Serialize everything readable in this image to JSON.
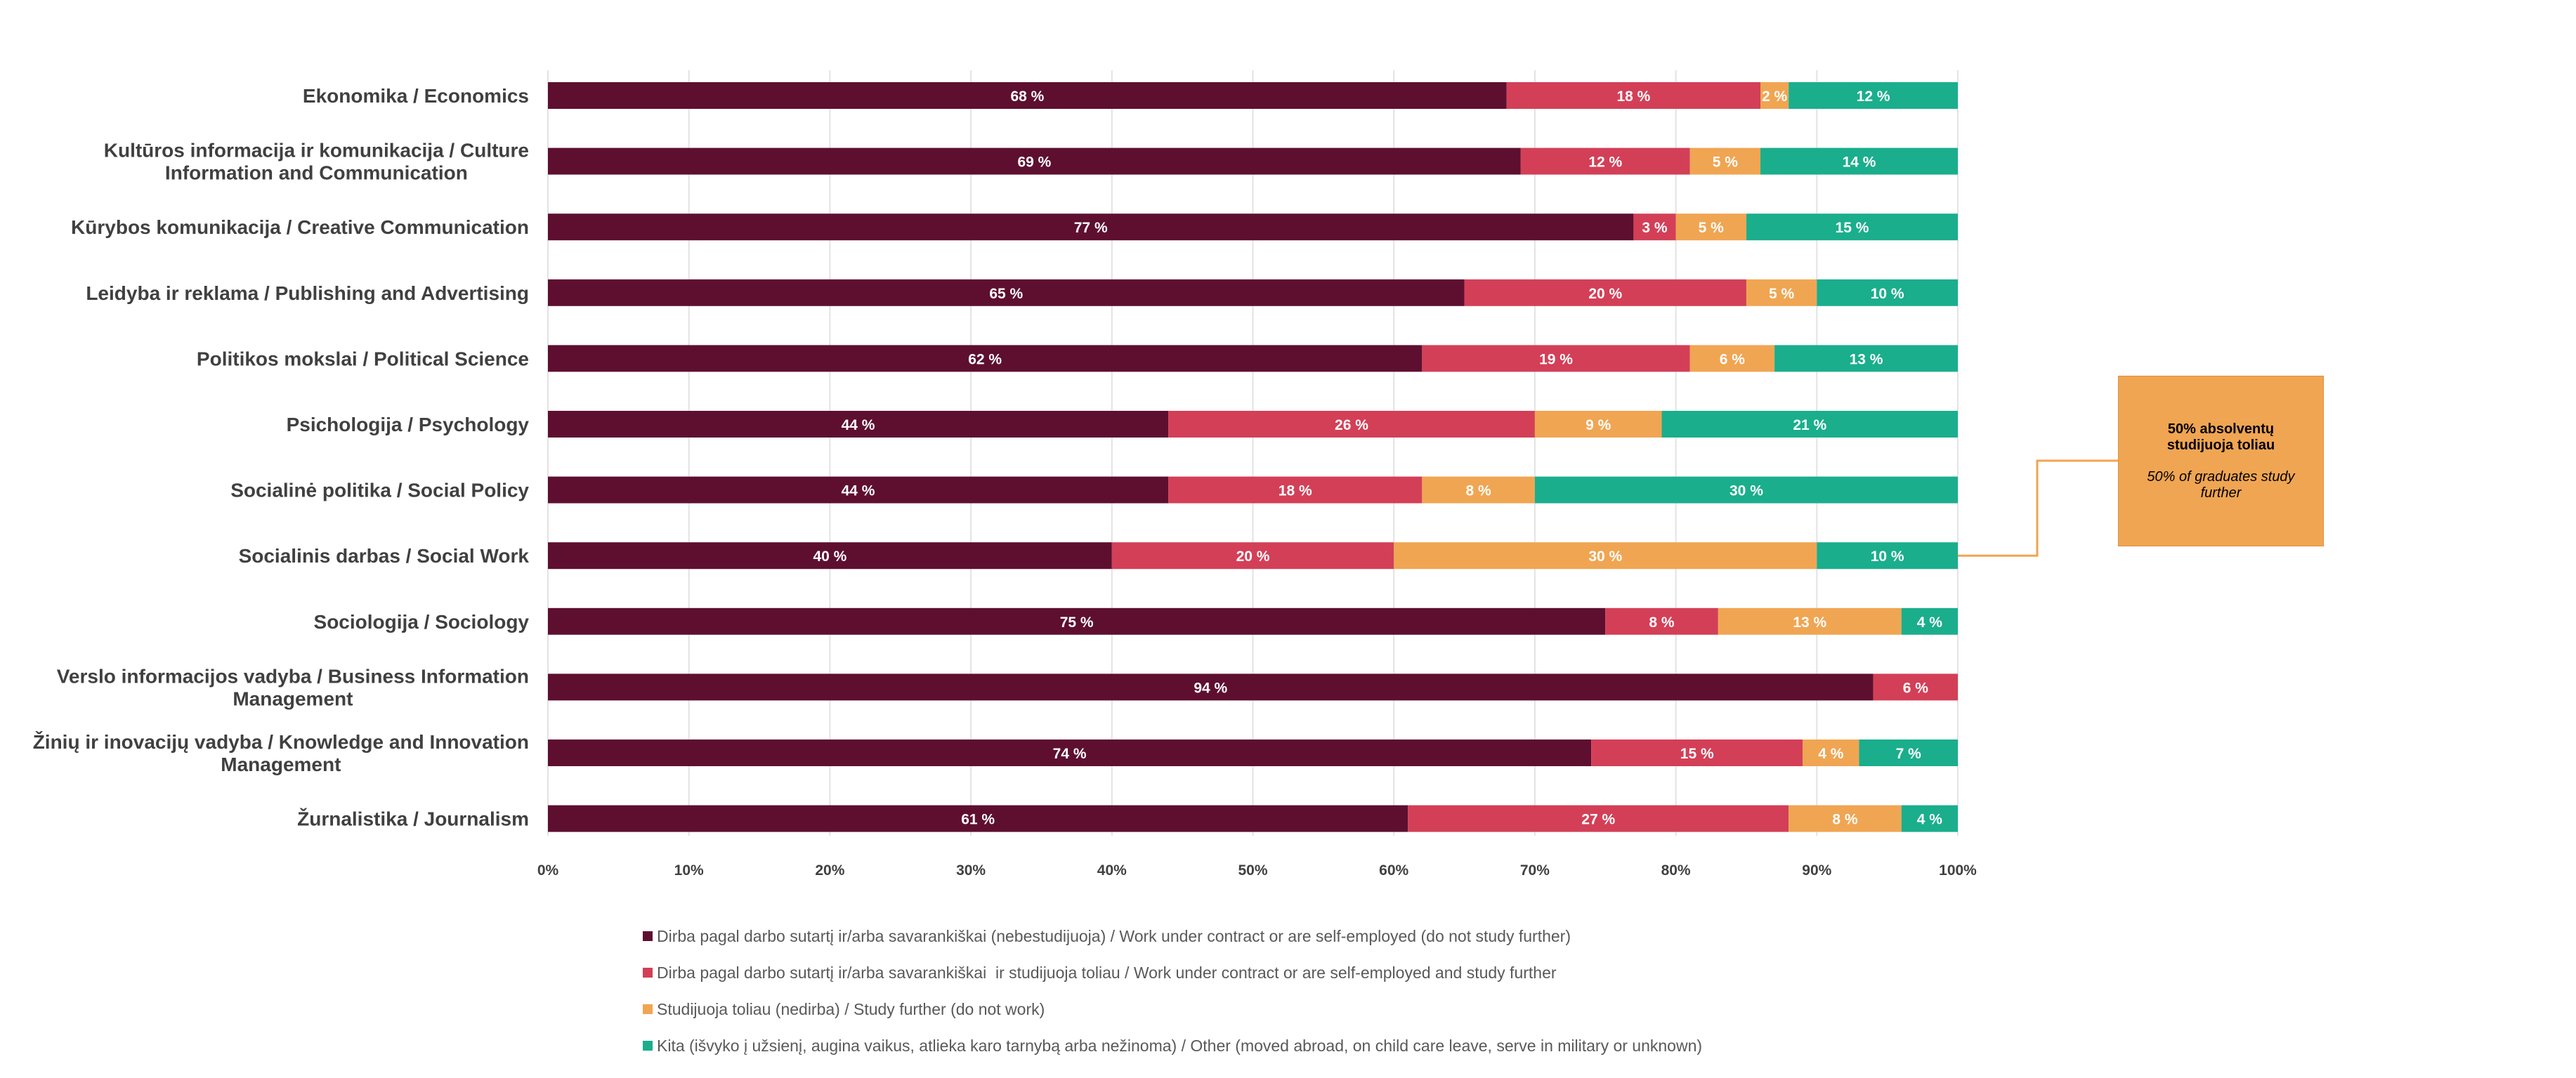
{
  "chart_data": {
    "type": "bar",
    "orientation": "horizontal",
    "stacked": "percent",
    "categories": [
      "Ekonomika / Economics",
      "Kultūros informacija ir komunikacija / Culture Information and Communication",
      "Kūrybos komunikacija / Creative Communication",
      "Leidyba ir reklama / Publishing and Advertising",
      "Politikos mokslai / Political Science",
      "Psichologija / Psychology",
      "Socialinė politika / Social Policy",
      "Socialinis darbas / Social Work",
      "Sociologija / Sociology",
      "Verslo informacijos vadyba / Business Information Management",
      "Žinių ir inovacijų vadyba / Knowledge and Innovation Management",
      "Žurnalistika / Journalism"
    ],
    "category_lines": [
      [
        "Ekonomika / Economics"
      ],
      [
        "Kultūros informacija ir komunikacija / Culture",
        "Information and Communication"
      ],
      [
        "Kūrybos komunikacija / Creative Communication"
      ],
      [
        "Leidyba ir reklama / Publishing and Advertising"
      ],
      [
        "Politikos mokslai / Political Science"
      ],
      [
        "Psichologija / Psychology"
      ],
      [
        "Socialinė politika / Social Policy"
      ],
      [
        "Socialinis darbas / Social Work"
      ],
      [
        "Sociologija / Sociology"
      ],
      [
        "Verslo informacijos vadyba / Business Information",
        "Management"
      ],
      [
        "Žinių ir inovacijų vadyba / Knowledge and Innovation",
        "Management"
      ],
      [
        "Žurnalistika / Journalism"
      ]
    ],
    "series": [
      {
        "name": "Dirba pagal darbo sutartį ir/arba savarankiškai (nebestudijuoja) / Work under contract or are self-employed (do not study further)",
        "color": "#5e0f30",
        "values": [
          68,
          69,
          77,
          65,
          62,
          44,
          44,
          40,
          75,
          94,
          74,
          61
        ]
      },
      {
        "name": "Dirba pagal darbo sutartį ir/arba savarankiškai  ir studijuoja toliau / Work under contract or are self-employed and study further",
        "color": "#d33f57",
        "values": [
          18,
          12,
          3,
          20,
          19,
          26,
          18,
          20,
          8,
          6,
          15,
          27
        ]
      },
      {
        "name": "Studijuoja toliau (nedirba) / Study further (do not work)",
        "color": "#f0a552",
        "values": [
          2,
          5,
          5,
          5,
          6,
          9,
          8,
          30,
          13,
          0,
          4,
          8
        ]
      },
      {
        "name": "Kita (išvyko į užsienį, augina vaikus, atlieka karo tarnybą arba nežinoma) / Other (moved abroad, on child care leave, serve in military or unknown)",
        "color": "#1aae8c",
        "values": [
          12,
          14,
          15,
          10,
          13,
          21,
          30,
          10,
          4,
          0,
          7,
          4
        ]
      }
    ],
    "value_suffix": " %",
    "xlim": [
      0,
      100
    ],
    "x_ticks": [
      "0%",
      "10%",
      "20%",
      "30%",
      "40%",
      "50%",
      "60%",
      "70%",
      "80%",
      "90%",
      "100%"
    ],
    "grid": "vertical",
    "legend_position": "bottom"
  },
  "callout": {
    "title": "50% absolventų studijuoja toliau",
    "subtitle": "50% of graduates study further",
    "target_category_index": 7
  }
}
